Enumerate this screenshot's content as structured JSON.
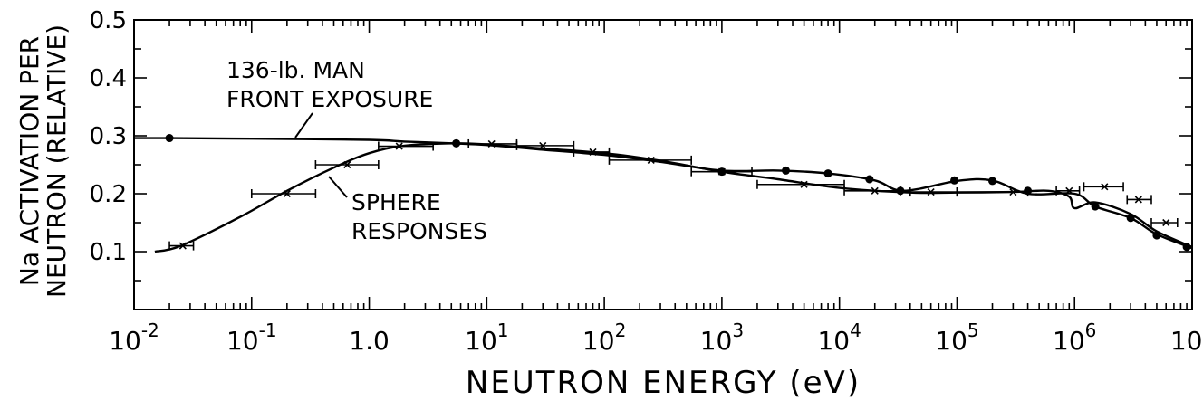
{
  "chart_data": {
    "type": "line",
    "xlabel": "NEUTRON ENERGY (eV)",
    "ylabel_line1": "Na ACTIVATION PER",
    "ylabel_line2": "NEUTRON (RELATIVE)",
    "x_scale": "log",
    "xlim": [
      0.01,
      10000000
    ],
    "ylim": [
      0,
      0.5
    ],
    "grid": false,
    "x_ticks": [
      {
        "value": 0.01,
        "base": "10",
        "exp": "-2"
      },
      {
        "value": 0.1,
        "base": "10",
        "exp": "-1"
      },
      {
        "value": 1,
        "base": "1.0",
        "exp": ""
      },
      {
        "value": 10,
        "base": "10",
        "exp": "1"
      },
      {
        "value": 100,
        "base": "10",
        "exp": "2"
      },
      {
        "value": 1000,
        "base": "10",
        "exp": "3"
      },
      {
        "value": 10000,
        "base": "10",
        "exp": "4"
      },
      {
        "value": 100000,
        "base": "10",
        "exp": "5"
      },
      {
        "value": 1000000,
        "base": "10",
        "exp": "6"
      },
      {
        "value": 10000000,
        "base": "10",
        "exp": "7"
      }
    ],
    "y_ticks": [
      {
        "value": 0.1,
        "label": "0.1"
      },
      {
        "value": 0.2,
        "label": "0.2"
      },
      {
        "value": 0.3,
        "label": "0.3"
      },
      {
        "value": 0.4,
        "label": "0.4"
      },
      {
        "value": 0.5,
        "label": "0.5"
      }
    ],
    "annotations": {
      "man_line1": "136-lb. MAN",
      "man_line2": "FRONT EXPOSURE",
      "sphere_line1": "SPHERE",
      "sphere_line2": "RESPONSES"
    },
    "series": [
      {
        "marker": "dot",
        "x": [
          0.01,
          0.02,
          0.1,
          1,
          2,
          5,
          10,
          30,
          100,
          300,
          1000,
          3000,
          8000,
          20000,
          35000,
          100000,
          200000,
          400000,
          1000000,
          1500000,
          3000000,
          5000000,
          10000000
        ],
        "y": [
          0.296,
          0.296,
          0.295,
          0.293,
          0.29,
          0.287,
          0.284,
          0.276,
          0.267,
          0.255,
          0.24,
          0.24,
          0.235,
          0.223,
          0.205,
          0.222,
          0.223,
          0.2,
          0.2,
          0.178,
          0.158,
          0.13,
          0.106
        ],
        "points": [
          {
            "x": 0.02,
            "y": 0.296
          },
          {
            "x": 5.5,
            "y": 0.287
          },
          {
            "x": 1000,
            "y": 0.238
          },
          {
            "x": 3500,
            "y": 0.24
          },
          {
            "x": 8000,
            "y": 0.235
          },
          {
            "x": 18000,
            "y": 0.225
          },
          {
            "x": 33000,
            "y": 0.205
          },
          {
            "x": 95000,
            "y": 0.223
          },
          {
            "x": 200000,
            "y": 0.222
          },
          {
            "x": 400000,
            "y": 0.205
          },
          {
            "x": 1500000,
            "y": 0.178
          },
          {
            "x": 3000000,
            "y": 0.158
          },
          {
            "x": 5000000,
            "y": 0.128
          },
          {
            "x": 9000000,
            "y": 0.108
          }
        ]
      },
      {
        "marker": "x-errorbar",
        "x": [
          0.015,
          0.025,
          0.08,
          0.2,
          0.5,
          1.0,
          2.0,
          5.5,
          10,
          30,
          100,
          300,
          1000,
          3000,
          10000,
          40000,
          100000,
          300000,
          600000,
          900000,
          1000000,
          1500000,
          3000000,
          5000000,
          10000000
        ],
        "y": [
          0.1,
          0.11,
          0.16,
          0.205,
          0.245,
          0.27,
          0.283,
          0.287,
          0.285,
          0.278,
          0.27,
          0.257,
          0.238,
          0.225,
          0.21,
          0.202,
          0.202,
          0.203,
          0.205,
          0.195,
          0.175,
          0.185,
          0.165,
          0.135,
          0.108
        ],
        "points": [
          {
            "x": 0.026,
            "y": 0.11,
            "xlo": 0.02,
            "xhi": 0.032
          },
          {
            "x": 0.2,
            "y": 0.2,
            "xlo": 0.1,
            "xhi": 0.35
          },
          {
            "x": 0.65,
            "y": 0.25,
            "xlo": 0.35,
            "xhi": 1.2
          },
          {
            "x": 1.8,
            "y": 0.282,
            "xlo": 1.2,
            "xhi": 3.5
          },
          {
            "x": 11,
            "y": 0.286,
            "xlo": 7,
            "xhi": 18
          },
          {
            "x": 30,
            "y": 0.283,
            "xlo": 18,
            "xhi": 55
          },
          {
            "x": 80,
            "y": 0.272,
            "xlo": 55,
            "xhi": 110
          },
          {
            "x": 250,
            "y": 0.258,
            "xlo": 110,
            "xhi": 550
          },
          {
            "x": 1000,
            "y": 0.238,
            "xlo": 550,
            "xhi": 1800
          },
          {
            "x": 5000,
            "y": 0.216,
            "xlo": 2000,
            "xhi": 11000
          },
          {
            "x": 20000,
            "y": 0.205,
            "xlo": 11000,
            "xhi": 33000
          },
          {
            "x": 60000,
            "y": 0.203,
            "xlo": 40000,
            "xhi": 100000
          },
          {
            "x": 300000,
            "y": 0.203,
            "xlo": 100000,
            "xhi": 400000
          },
          {
            "x": 900000,
            "y": 0.205,
            "xlo": 700000,
            "xhi": 1100000
          },
          {
            "x": 1800000,
            "y": 0.212,
            "xlo": 1200000,
            "xhi": 2600000
          },
          {
            "x": 3500000,
            "y": 0.19,
            "xlo": 2800000,
            "xhi": 4500000
          },
          {
            "x": 6000000,
            "y": 0.15,
            "xlo": 4500000,
            "xhi": 7500000
          }
        ]
      }
    ]
  }
}
